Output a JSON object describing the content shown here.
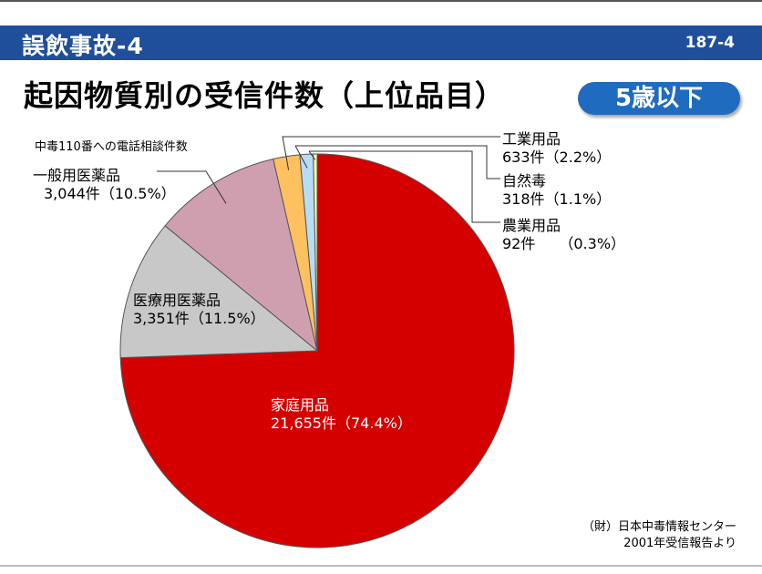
{
  "header": {
    "title": "誤飲事故-4",
    "slide_number": "187-4"
  },
  "main_title": "起因物質別の受信件数（上位品目）",
  "badge": {
    "label": "5歳以下",
    "color": "#1f6bc0"
  },
  "chart_data": {
    "type": "pie",
    "subtitle": "中毒110番への電話相談件数",
    "unit": "件",
    "start": "12 o'clock",
    "direction": "clockwise",
    "slices": [
      {
        "name": "家庭用品",
        "value": 21655,
        "value_label": "21,655件",
        "percent_label": "（74.4%）",
        "color": "#d40000"
      },
      {
        "name": "医療用医薬品",
        "value": 3351,
        "value_label": "3,351件",
        "percent_label": "（11.5%）",
        "color": "#c8c8c8"
      },
      {
        "name": "一般用医薬品",
        "value": 3044,
        "value_label": "3,044件",
        "percent_label": "（10.5%）",
        "color": "#cf9fb0"
      },
      {
        "name": "工業用品",
        "value": 633,
        "value_label": "633件",
        "percent_label": "（2.2%）",
        "color": "#ffc060"
      },
      {
        "name": "自然毒",
        "value": 318,
        "value_label": "318件",
        "percent_label": "（1.1%）",
        "color": "#b8dcf2"
      },
      {
        "name": "農業用品",
        "value": 92,
        "value_label": "92件",
        "percent_label": "（0.3%）",
        "color": "#ffffb0"
      }
    ]
  },
  "source": {
    "line1": "（財）日本中毒情報センター",
    "line2": "2001年受信報告より"
  },
  "colors": {
    "header_bar": "#1f4f9b",
    "slice_outline": "#555555",
    "leader_line": "#333333"
  }
}
